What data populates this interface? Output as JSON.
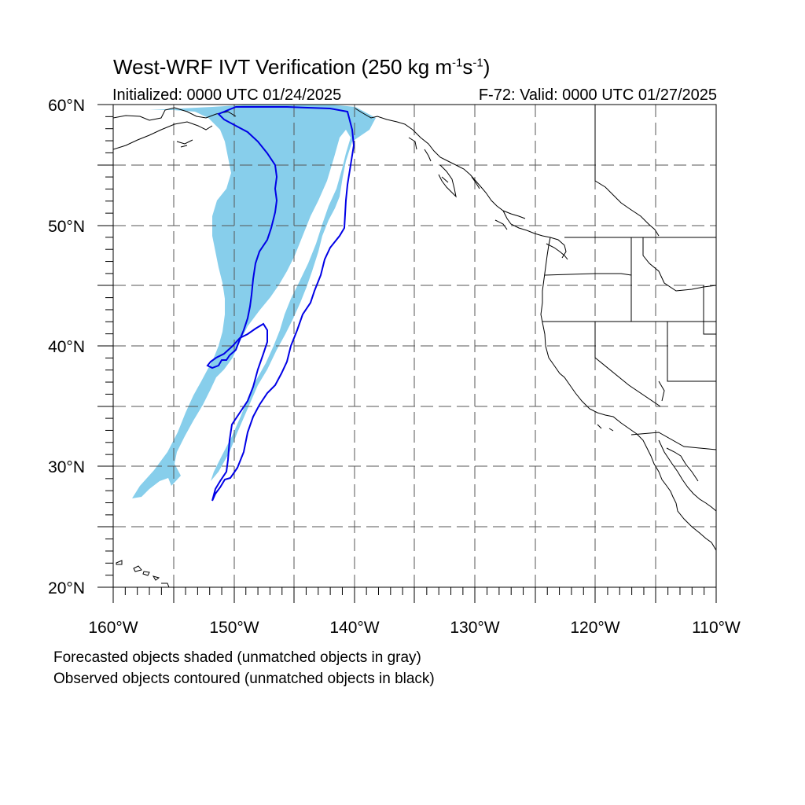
{
  "header": {
    "title_main": "West-WRF IVT Verification (250 kg m",
    "title_exp1": "-1",
    "title_mid": "s",
    "title_exp2": "-1",
    "title_end": ")",
    "initialized": "Initialized: 0000 UTC 01/24/2025",
    "valid": "F-72: Valid: 0000 UTC 01/27/2025"
  },
  "axes": {
    "lat_labels": [
      "60°N",
      "50°N",
      "40°N",
      "30°N",
      "20°N"
    ],
    "lon_labels": [
      "160°W",
      "150°W",
      "140°W",
      "130°W",
      "120°W",
      "110°W"
    ],
    "lon_range": [
      -160,
      -110
    ],
    "lat_range": [
      20,
      60
    ],
    "grid": "dashed every 5°"
  },
  "legend": {
    "forecast_note": "Forecasted objects shaded (unmatched objects in gray)",
    "observed_note": "Observed objects contoured (unmatched objects in black)"
  },
  "colors": {
    "forecast_fill": "#87ceeb",
    "observed_contour": "#0000e6",
    "coastline": "#000000",
    "grid": "#555555"
  }
}
